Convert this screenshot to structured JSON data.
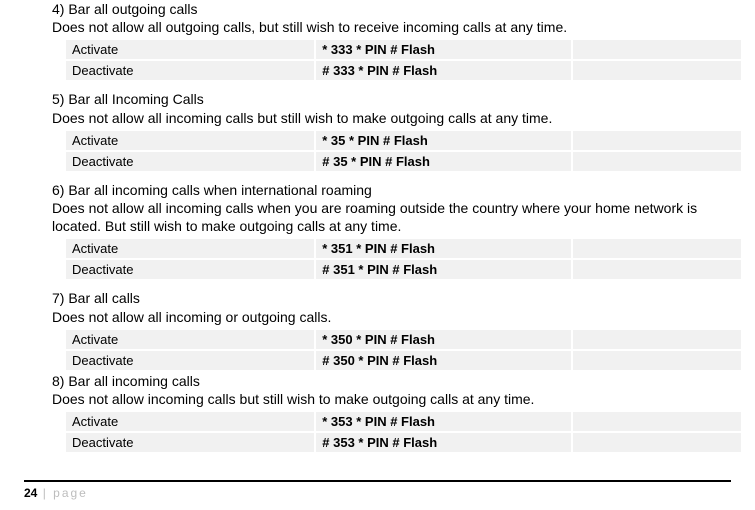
{
  "colors": {
    "background": "#ffffff",
    "text": "#000000",
    "cell_bg": "#f1f1f1",
    "footer_rule": "#000000",
    "footer_muted": "#bdbdbd"
  },
  "typography": {
    "body_fontsize": 14,
    "table_fontsize": 13,
    "footer_fontsize": 12
  },
  "table_layout": {
    "col_widths_pct": [
      37,
      38,
      25
    ],
    "cell_padding": "2px 6px",
    "border_spacing": 2
  },
  "sections": [
    {
      "title": "4) Bar all outgoing calls",
      "desc": "Does not allow all outgoing calls, but still wish to receive incoming calls at any time.",
      "rows": [
        {
          "label": "Activate",
          "code_prefix": "* 333 * PIN # ",
          "code_bold": "Flash"
        },
        {
          "label": "Deactivate",
          "code_prefix": "# 333 * PIN # ",
          "code_bold": "Flash"
        }
      ]
    },
    {
      "title": "5) Bar all Incoming Calls",
      "desc": "Does not allow all incoming calls but still wish to make outgoing calls at any time.",
      "rows": [
        {
          "label": "Activate",
          "code_prefix": "* 35 * PIN # ",
          "code_bold": "Flash"
        },
        {
          "label": "Deactivate",
          "code_prefix": "# 35 * PIN # ",
          "code_bold": "Flash"
        }
      ]
    },
    {
      "title": "6) Bar all incoming calls when international roaming",
      "desc": "Does not allow all incoming calls when you are roaming outside the country where your home network is located. But still wish to make outgoing calls at any time.",
      "rows": [
        {
          "label": "Activate",
          "code_prefix": "* 351 * PIN # ",
          "code_bold": "Flash"
        },
        {
          "label": "Deactivate",
          "code_prefix": "# 351 * PIN # ",
          "code_bold": "Flash"
        }
      ]
    },
    {
      "title": "7) Bar all calls",
      "desc": "Does not allow all incoming or outgoing calls.",
      "rows": [
        {
          "label": "Activate",
          "code_prefix": "* 350 * PIN # ",
          "code_bold": "Flash"
        },
        {
          "label": "Deactivate",
          "code_prefix": "# 350 * PIN # ",
          "code_bold": "Flash"
        }
      ],
      "tight_after": true
    },
    {
      "title": "8) Bar all incoming calls",
      "desc": "Does not allow incoming calls but still wish to make outgoing calls at any time.",
      "rows": [
        {
          "label": "Activate",
          "code_prefix": "* 353 * PIN # ",
          "code_bold": "Flash"
        },
        {
          "label": "Deactivate",
          "code_prefix": "# 353 * PIN # ",
          "code_bold": "Flash"
        }
      ]
    }
  ],
  "footer": {
    "page_num": "24",
    "sep": " | ",
    "label": "page"
  }
}
